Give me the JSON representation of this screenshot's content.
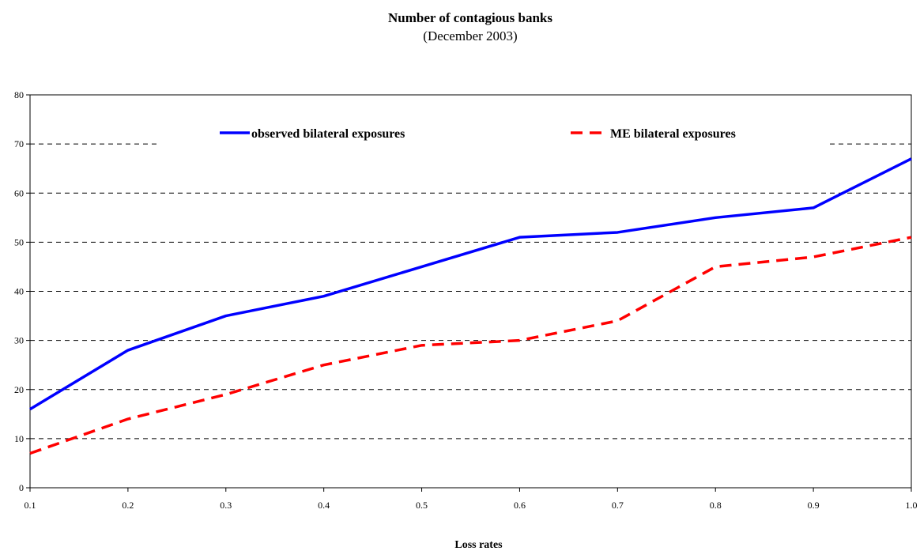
{
  "chart_data": {
    "type": "line",
    "title": "Number of contagious banks",
    "subtitle": "(December 2003)",
    "xlabel": "Loss rates",
    "ylabel": "",
    "x": [
      0.1,
      0.2,
      0.3,
      0.4,
      0.5,
      0.6,
      0.7,
      0.8,
      0.9,
      1.0
    ],
    "x_tick_labels": [
      "0.1",
      "0.2",
      "0.3",
      "0.4",
      "0.5",
      "0.6",
      "0.7",
      "0.8",
      "0.9",
      "1.0"
    ],
    "xlim": [
      0.1,
      1.0
    ],
    "ylim": [
      0,
      80
    ],
    "y_ticks": [
      0,
      10,
      20,
      30,
      40,
      50,
      60,
      70,
      80
    ],
    "grid": "horizontal dashed",
    "legend_position": "top-center",
    "series": [
      {
        "name": "observed bilateral exposures",
        "color": "#0000ff",
        "style": "solid",
        "values": [
          16,
          28,
          35,
          39,
          45,
          51,
          52,
          55,
          57,
          67
        ]
      },
      {
        "name": "ME bilateral exposures",
        "color": "#ff0000",
        "style": "dashed",
        "values": [
          7,
          14,
          19,
          25,
          29,
          30,
          34,
          45,
          47,
          51
        ]
      }
    ]
  }
}
